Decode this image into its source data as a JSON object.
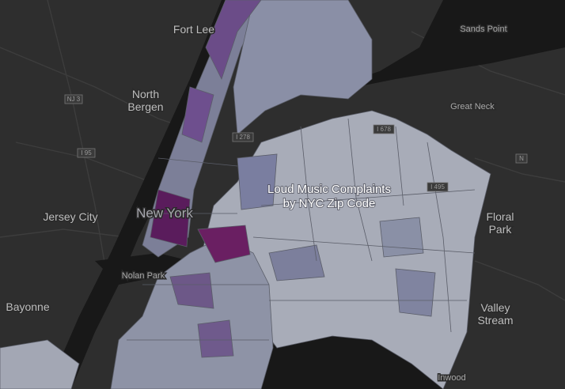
{
  "title": {
    "line1": "Loud Music Complaints",
    "line2": "by NYC Zip Code"
  },
  "places": [
    {
      "label": "Fort Lee"
    },
    {
      "label": "Sands Point"
    },
    {
      "label": "North"
    },
    {
      "label": "Bergen"
    },
    {
      "label": "Great Neck"
    },
    {
      "label": "Jersey City"
    },
    {
      "label": "New York"
    },
    {
      "label": "Floral"
    },
    {
      "label": "Park"
    },
    {
      "label": "Nolan Park"
    },
    {
      "label": "Bayonne"
    },
    {
      "label": "Valley"
    },
    {
      "label": "Stream"
    },
    {
      "label": "Inwood"
    }
  ],
  "shields": [
    {
      "label": "NJ 3"
    },
    {
      "label": "I 95"
    },
    {
      "label": "I 278"
    },
    {
      "label": "I 495"
    },
    {
      "label": "I 678"
    },
    {
      "label": "N"
    }
  ]
}
